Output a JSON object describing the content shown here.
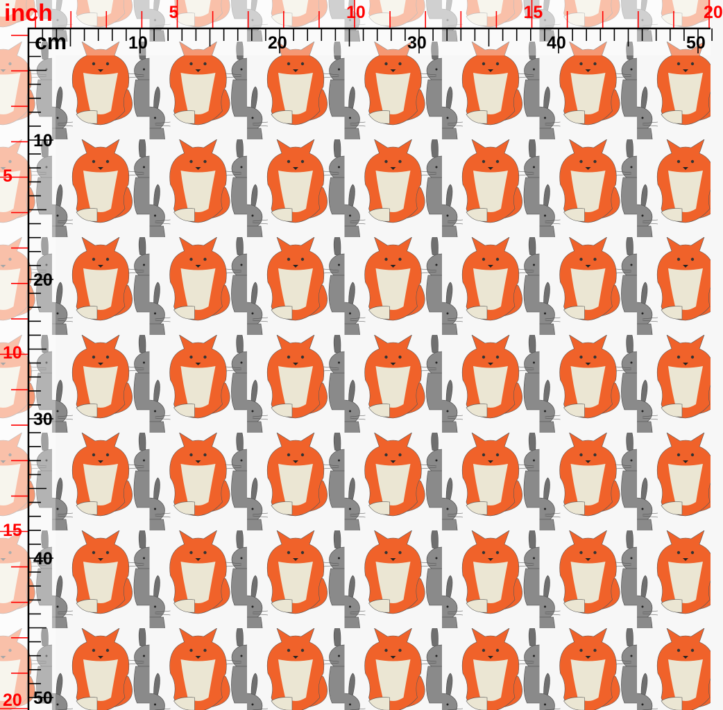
{
  "rulers": {
    "inch_unit": "inch",
    "cm_unit": "cm",
    "cm_labels": [
      "10",
      "20",
      "30",
      "40",
      "50"
    ],
    "inch_labels": [
      "5",
      "10",
      "15",
      "20"
    ],
    "cm_vertical_labels": [
      "10",
      "20",
      "30",
      "40",
      "50"
    ],
    "inch_vertical_labels": [
      "5",
      "10",
      "15",
      "20"
    ]
  },
  "colors": {
    "background": "#f7f7f7",
    "fox_orange": "#f0622a",
    "fox_cream": "#ebe6d3",
    "bunny_grey": "#8a8a8a",
    "cm_ruler": "#000000",
    "inch_ruler": "#ff0000"
  },
  "pattern": {
    "motifs": [
      "fox",
      "bunny"
    ]
  }
}
